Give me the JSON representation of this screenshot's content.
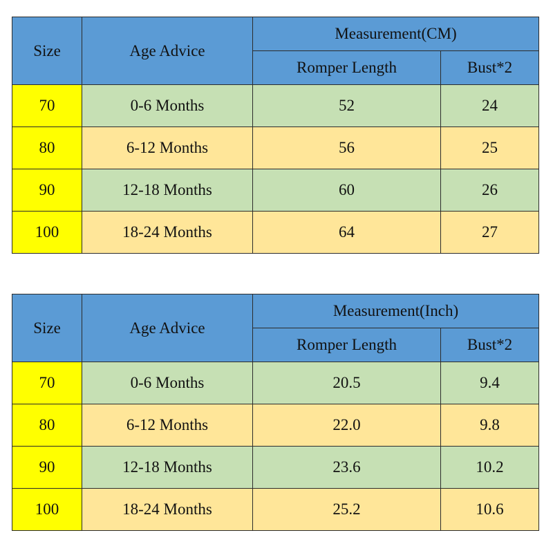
{
  "tables": [
    {
      "id": "cm",
      "header": {
        "size": "Size",
        "age": "Age Advice",
        "measurement": "Measurement(CM)",
        "length": "Romper Length",
        "bust": "Bust*2"
      },
      "rows": [
        {
          "size": "70",
          "age": "0-6 Months",
          "length": "52",
          "bust": "24"
        },
        {
          "size": "80",
          "age": "6-12 Months",
          "length": "56",
          "bust": "25"
        },
        {
          "size": "90",
          "age": "12-18 Months",
          "length": "60",
          "bust": "26"
        },
        {
          "size": "100",
          "age": "18-24 Months",
          "length": "64",
          "bust": "27"
        }
      ]
    },
    {
      "id": "inch",
      "header": {
        "size": "Size",
        "age": "Age Advice",
        "measurement": "Measurement(Inch)",
        "length": "Romper Length",
        "bust": "Bust*2"
      },
      "rows": [
        {
          "size": "70",
          "age": "0-6 Months",
          "length": "20.5",
          "bust": "9.4"
        },
        {
          "size": "80",
          "age": "6-12 Months",
          "length": "22.0",
          "bust": "9.8"
        },
        {
          "size": "90",
          "age": "12-18 Months",
          "length": "23.6",
          "bust": "10.2"
        },
        {
          "size": "100",
          "age": "18-24 Months",
          "length": "25.2",
          "bust": "10.6"
        }
      ]
    }
  ],
  "colors": {
    "header": "#5b9bd5",
    "size_column": "#ffff00",
    "row_green": "#c6e0b4",
    "row_peach": "#ffe699",
    "border": "#2b2b2b"
  }
}
